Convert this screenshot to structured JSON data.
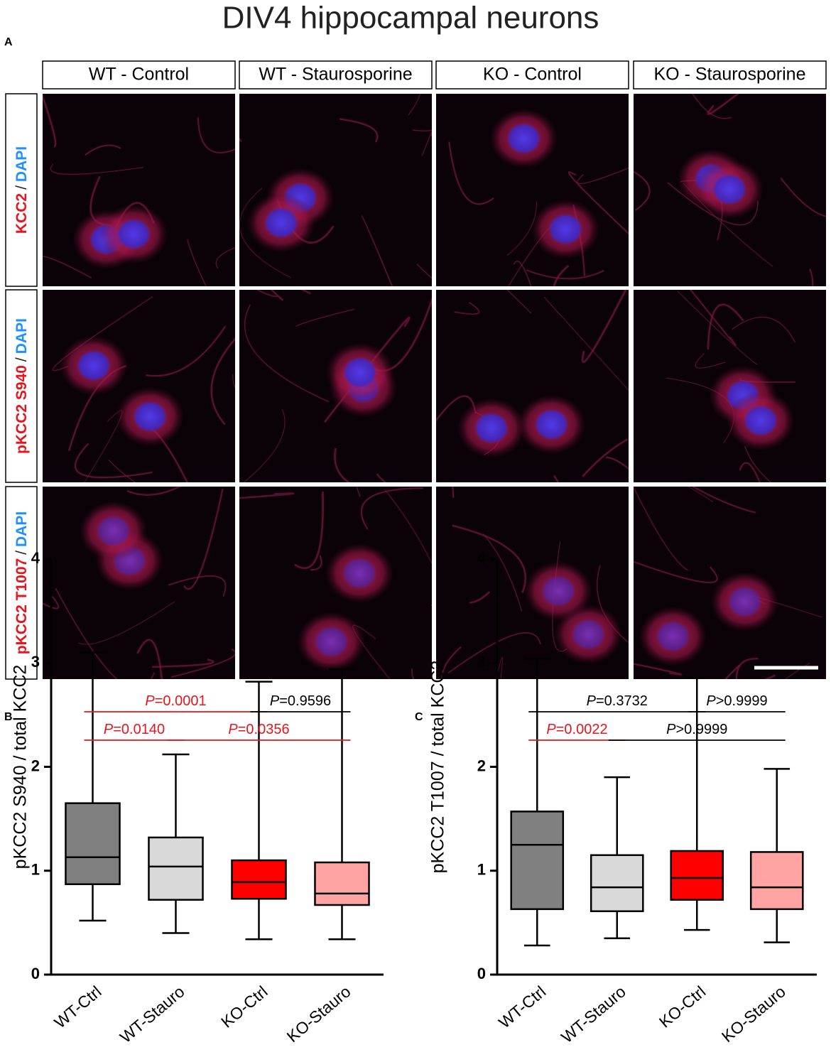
{
  "figure": {
    "title": "DIV4 hippocampal neurons",
    "panel": "A",
    "columns": [
      "WT - Control",
      "WT - Staurosporine",
      "KO - Control",
      "KO - Staurosporine"
    ],
    "rows": [
      {
        "stain": "KCC2",
        "counterstain": "DAPI"
      },
      {
        "stain": "pKCC2 S940",
        "counterstain": "DAPI"
      },
      {
        "stain": "pKCC2 T1007",
        "counterstain": "DAPI"
      }
    ],
    "separator": "/"
  },
  "chart_data": [
    {
      "type": "box",
      "panel": "B",
      "y_label": "pKCC2 S940 / total KCC2",
      "categories": [
        "WT-Ctrl",
        "WT-Stauro",
        "KO-Ctrl",
        "KO-Stauro"
      ],
      "colors": [
        "#808080",
        "#d9d9d9",
        "#ff0000",
        "#ffa3a3"
      ],
      "boxes": [
        {
          "min": 0.52,
          "q1": 0.87,
          "median": 1.13,
          "q3": 1.65,
          "max": 3.1
        },
        {
          "min": 0.4,
          "q1": 0.72,
          "median": 1.04,
          "q3": 1.32,
          "max": 2.12
        },
        {
          "min": 0.34,
          "q1": 0.73,
          "median": 0.89,
          "q3": 1.1,
          "max": 2.82
        },
        {
          "min": 0.34,
          "q1": 0.67,
          "median": 0.78,
          "q3": 1.08,
          "max": 2.94
        }
      ],
      "ylim": [
        0,
        4
      ],
      "yticks": [
        0,
        1,
        2,
        3,
        4
      ],
      "comparisons": [
        [
          {
            "from": 0,
            "to": 2,
            "symbol": "P",
            "text": "=0.0001",
            "color": "#e8141c"
          },
          {
            "from": 2,
            "to": 3,
            "symbol": "P",
            "text": "=0.9596",
            "color": "#000000"
          }
        ],
        [
          {
            "from": 0,
            "to": 1,
            "symbol": "P",
            "text": "=0.0140",
            "color": "#e8141c"
          },
          {
            "from": 1,
            "to": 3,
            "symbol": "P",
            "text": "=0.0356",
            "color": "#e8141c"
          }
        ]
      ]
    },
    {
      "type": "box",
      "panel": "C",
      "y_label": "pKCC2 T1007 / total KCC2",
      "categories": [
        "WT-Ctrl",
        "WT-Stauro",
        "KO-Ctrl",
        "KO-Stauro"
      ],
      "colors": [
        "#808080",
        "#d9d9d9",
        "#ff0000",
        "#ffa3a3"
      ],
      "boxes": [
        {
          "min": 0.28,
          "q1": 0.63,
          "median": 1.25,
          "q3": 1.57,
          "max": 3.04
        },
        {
          "min": 0.35,
          "q1": 0.61,
          "median": 0.84,
          "q3": 1.15,
          "max": 1.9
        },
        {
          "min": 0.43,
          "q1": 0.72,
          "median": 0.93,
          "q3": 1.19,
          "max": 2.86
        },
        {
          "min": 0.31,
          "q1": 0.63,
          "median": 0.84,
          "q3": 1.18,
          "max": 1.98
        }
      ],
      "ylim": [
        0,
        4
      ],
      "yticks": [
        0,
        1,
        2,
        3,
        4
      ],
      "comparisons": [
        [
          {
            "from": 0,
            "to": 2,
            "symbol": "P",
            "text": "=0.3732",
            "color": "#000000"
          },
          {
            "from": 2,
            "to": 3,
            "symbol": "P",
            "text": ">0.9999",
            "color": "#000000"
          }
        ],
        [
          {
            "from": 0,
            "to": 1,
            "symbol": "P",
            "text": "=0.0022",
            "color": "#e8141c"
          },
          {
            "from": 1,
            "to": 3,
            "symbol": "P",
            "text": ">0.9999",
            "color": "#000000"
          }
        ]
      ]
    }
  ]
}
